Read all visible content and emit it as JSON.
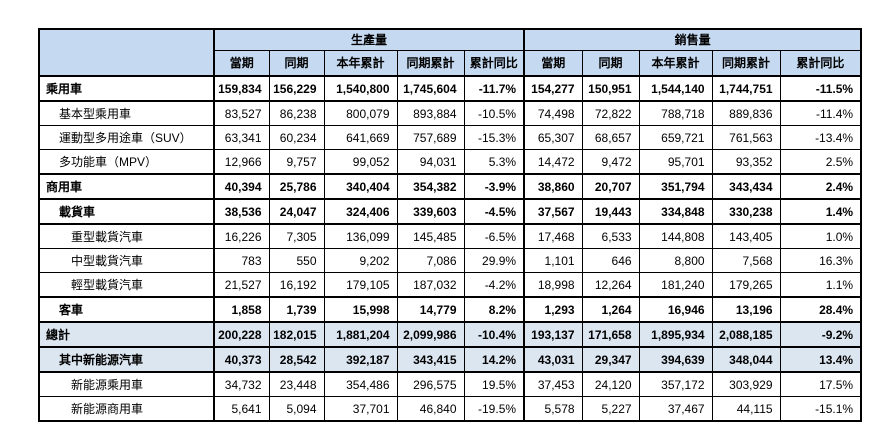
{
  "table": {
    "title": "vehicle-production-and-sales-summary",
    "groups": [
      "生產量",
      "銷售量"
    ],
    "sub_columns": [
      "當期",
      "同期",
      "本年累計",
      "同期累計",
      "累計同比"
    ],
    "corner_label": "",
    "colors": {
      "header_bg": "#c5d9f1",
      "summary_bg": "#dce6f1",
      "border": "#000000",
      "text": "#000000"
    },
    "rows": [
      {
        "label": "乘用車",
        "level": 0,
        "bold": true,
        "highlight": false,
        "production": [
          "159,834",
          "156,229",
          "1,540,800",
          "1,745,604",
          "-11.7%"
        ],
        "sales": [
          "154,277",
          "150,951",
          "1,544,140",
          "1,744,751",
          "-11.5%"
        ]
      },
      {
        "label": "基本型乘用車",
        "level": 1,
        "bold": false,
        "highlight": false,
        "production": [
          "83,527",
          "86,238",
          "800,079",
          "893,884",
          "-10.5%"
        ],
        "sales": [
          "74,498",
          "72,822",
          "788,718",
          "889,836",
          "-11.4%"
        ]
      },
      {
        "label": "運動型多用途車（SUV）",
        "level": 1,
        "bold": false,
        "highlight": false,
        "production": [
          "63,341",
          "60,234",
          "641,669",
          "757,689",
          "-15.3%"
        ],
        "sales": [
          "65,307",
          "68,657",
          "659,721",
          "761,563",
          "-13.4%"
        ]
      },
      {
        "label": "多功能車（MPV）",
        "level": 1,
        "bold": false,
        "highlight": false,
        "production": [
          "12,966",
          "9,757",
          "99,052",
          "94,031",
          "5.3%"
        ],
        "sales": [
          "14,472",
          "9,472",
          "95,701",
          "93,352",
          "2.5%"
        ]
      },
      {
        "label": "商用車",
        "level": 0,
        "bold": true,
        "highlight": false,
        "production": [
          "40,394",
          "25,786",
          "340,404",
          "354,382",
          "-3.9%"
        ],
        "sales": [
          "38,860",
          "20,707",
          "351,794",
          "343,434",
          "2.4%"
        ]
      },
      {
        "label": "載貨車",
        "level": 1,
        "bold": true,
        "highlight": false,
        "production": [
          "38,536",
          "24,047",
          "324,406",
          "339,603",
          "-4.5%"
        ],
        "sales": [
          "37,567",
          "19,443",
          "334,848",
          "330,238",
          "1.4%"
        ]
      },
      {
        "label": "重型載貨汽車",
        "level": 2,
        "bold": false,
        "highlight": false,
        "production": [
          "16,226",
          "7,305",
          "136,099",
          "145,485",
          "-6.5%"
        ],
        "sales": [
          "17,468",
          "6,533",
          "144,808",
          "143,405",
          "1.0%"
        ]
      },
      {
        "label": "中型載貨汽車",
        "level": 2,
        "bold": false,
        "highlight": false,
        "production": [
          "783",
          "550",
          "9,202",
          "7,086",
          "29.9%"
        ],
        "sales": [
          "1,101",
          "646",
          "8,800",
          "7,568",
          "16.3%"
        ]
      },
      {
        "label": "輕型載貨汽車",
        "level": 2,
        "bold": false,
        "highlight": false,
        "production": [
          "21,527",
          "16,192",
          "179,105",
          "187,032",
          "-4.2%"
        ],
        "sales": [
          "18,998",
          "12,264",
          "181,240",
          "179,265",
          "1.1%"
        ]
      },
      {
        "label": "客車",
        "level": 1,
        "bold": true,
        "highlight": false,
        "production": [
          "1,858",
          "1,739",
          "15,998",
          "14,779",
          "8.2%"
        ],
        "sales": [
          "1,293",
          "1,264",
          "16,946",
          "13,196",
          "28.4%"
        ]
      },
      {
        "label": "總計",
        "level": 0,
        "bold": true,
        "highlight": true,
        "production": [
          "200,228",
          "182,015",
          "1,881,204",
          "2,099,986",
          "-10.4%"
        ],
        "sales": [
          "193,137",
          "171,658",
          "1,895,934",
          "2,088,185",
          "-9.2%"
        ]
      },
      {
        "label": "其中新能源汽車",
        "level": 1,
        "bold": true,
        "highlight": true,
        "production": [
          "40,373",
          "28,542",
          "392,187",
          "343,415",
          "14.2%"
        ],
        "sales": [
          "43,031",
          "29,347",
          "394,639",
          "348,044",
          "13.4%"
        ]
      },
      {
        "label": "新能源乘用車",
        "level": 2,
        "bold": false,
        "highlight": false,
        "production": [
          "34,732",
          "23,448",
          "354,486",
          "296,575",
          "19.5%"
        ],
        "sales": [
          "37,453",
          "24,120",
          "357,172",
          "303,929",
          "17.5%"
        ]
      },
      {
        "label": "新能源商用車",
        "level": 2,
        "bold": false,
        "highlight": false,
        "production": [
          "5,641",
          "5,094",
          "37,701",
          "46,840",
          "-19.5%"
        ],
        "sales": [
          "5,578",
          "5,227",
          "37,467",
          "44,115",
          "-15.1%"
        ]
      }
    ]
  }
}
